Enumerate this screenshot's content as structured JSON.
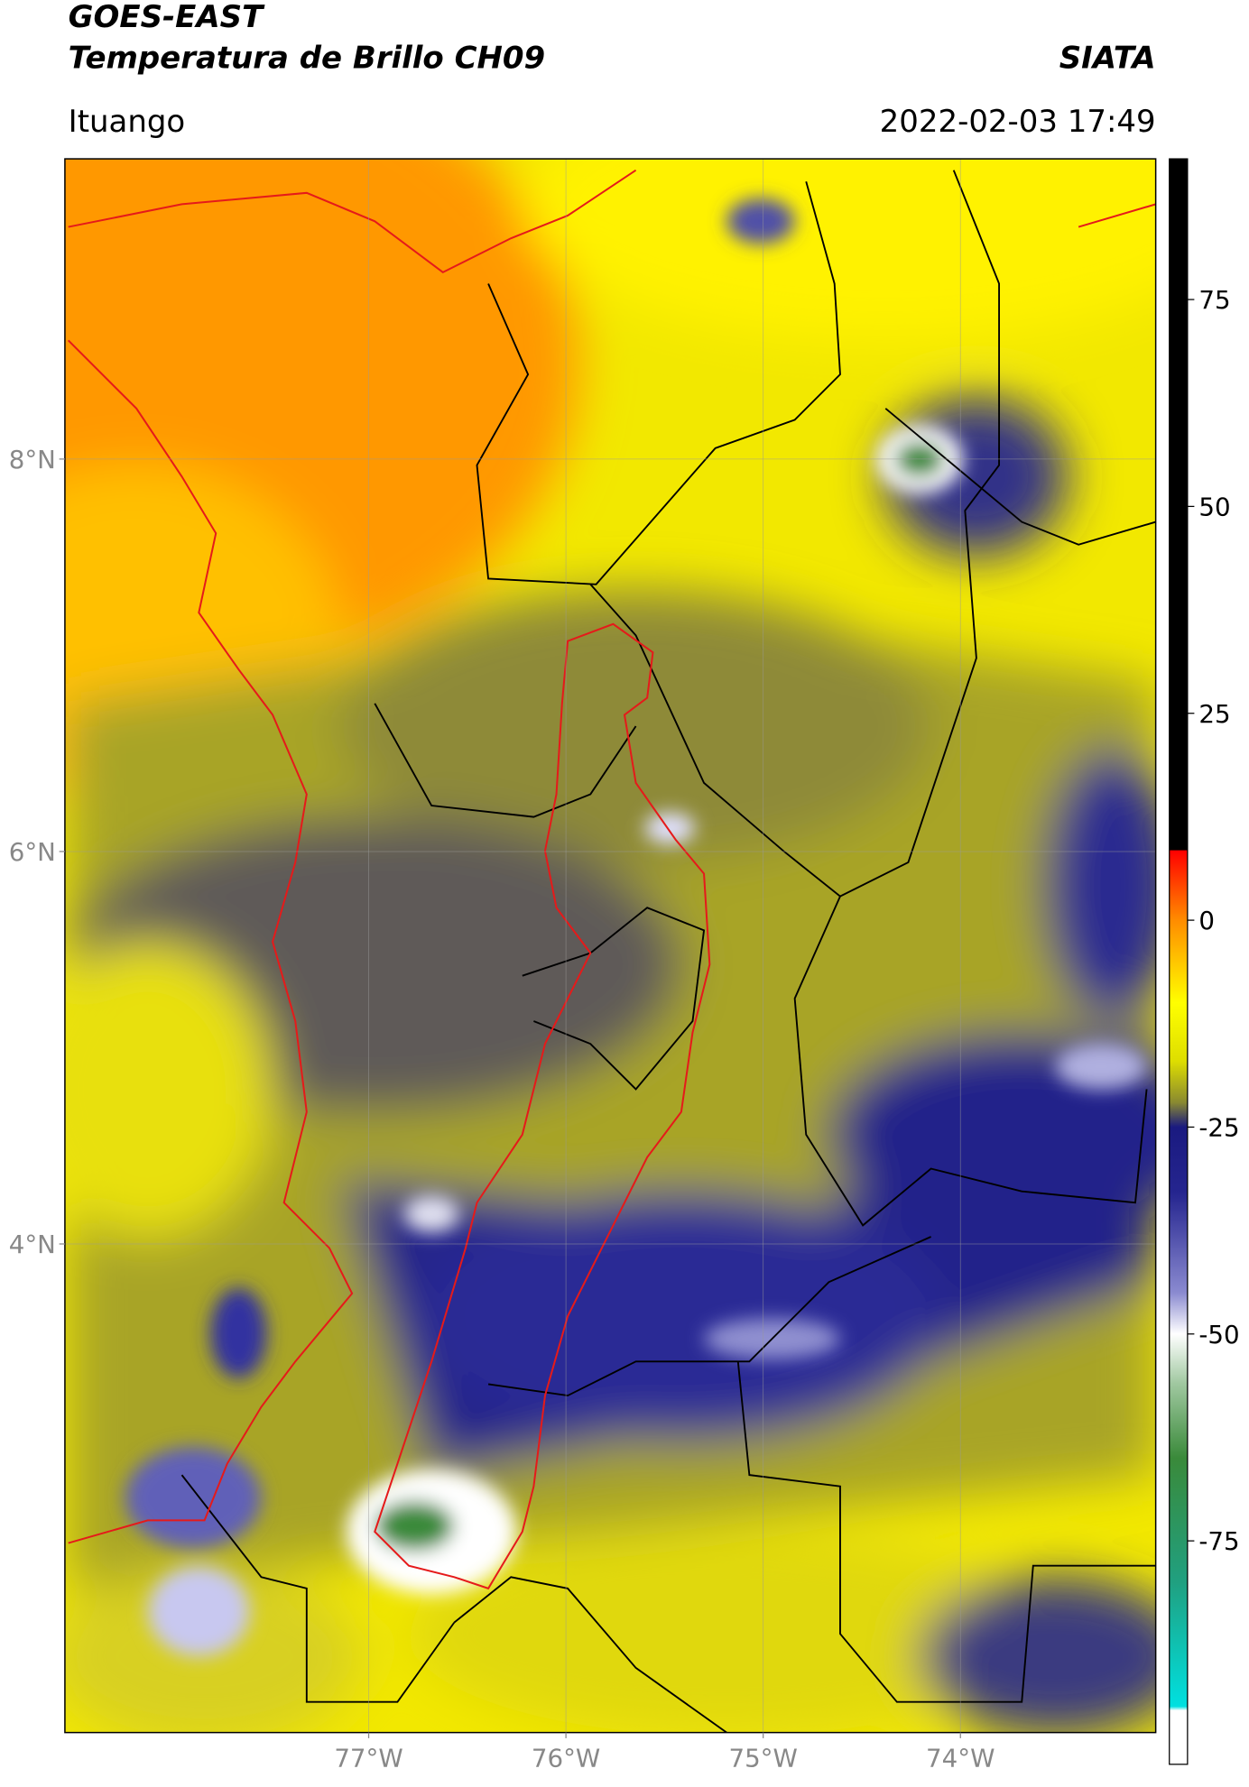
{
  "header": {
    "title": "GOES-EAST",
    "subtitle": "Temperatura de Brillo CH09",
    "source": "SIATA",
    "region": "Ituango",
    "timestamp": "2022-02-03 17:49"
  },
  "map": {
    "xlim": [
      -78.54,
      -73.01
    ],
    "ylim": [
      1.51,
      9.53
    ],
    "xticks": [
      {
        "value": -77,
        "label": "77°W"
      },
      {
        "value": -76,
        "label": "76°W"
      },
      {
        "value": -75,
        "label": "75°W"
      },
      {
        "value": -74,
        "label": "74°W"
      }
    ],
    "yticks": [
      {
        "value": 8,
        "label": "8°N"
      },
      {
        "value": 6,
        "label": "6°N"
      },
      {
        "value": 4,
        "label": "4°N"
      }
    ],
    "grid": true
  },
  "colorbar": {
    "range": [
      -102,
      92
    ],
    "ticks": [
      75,
      50,
      25,
      0,
      -25,
      -50,
      -75
    ],
    "stops": [
      [
        92,
        "#000000"
      ],
      [
        8.5,
        "#000000"
      ],
      [
        8.4,
        "#ff0000"
      ],
      [
        0,
        "#ff8c00"
      ],
      [
        -10,
        "#ffff00"
      ],
      [
        -17,
        "#dede00"
      ],
      [
        -22,
        "#8a8a30"
      ],
      [
        -25,
        "#1a1a80"
      ],
      [
        -33,
        "#25258f"
      ],
      [
        -45,
        "#8a8ad0"
      ],
      [
        -50,
        "#ffffff"
      ],
      [
        -56,
        "#a0c8a0"
      ],
      [
        -65,
        "#3a8a3a"
      ],
      [
        -80,
        "#20a080"
      ],
      [
        -95,
        "#00e0e0"
      ],
      [
        -95.5,
        "#ffffff"
      ],
      [
        -102,
        "#ffffff"
      ]
    ]
  }
}
